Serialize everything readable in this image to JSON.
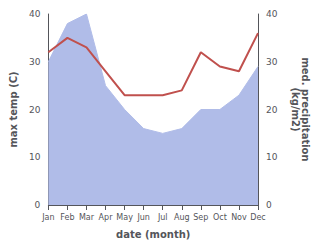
{
  "chart_data": {
    "type": "line",
    "categories": [
      "Jan",
      "Feb",
      "Mar",
      "Apr",
      "May",
      "Jun",
      "Jul",
      "Aug",
      "Sep",
      "Oct",
      "Nov",
      "Dec"
    ],
    "series": [
      {
        "type": "area",
        "color": "#b0bce8",
        "values": [
          30,
          38,
          40,
          25,
          20,
          16,
          15,
          16,
          20,
          20,
          23,
          29
        ]
      },
      {
        "type": "line",
        "color": "#c0504d",
        "axis": "y2",
        "values": [
          32,
          35,
          33,
          28,
          23,
          23,
          23,
          24,
          32,
          29,
          28,
          36
        ]
      }
    ],
    "xlabel": "date (month)",
    "ylabel": "max temp (C)",
    "y2label": "med. precipitation\n(kg/m2)",
    "ylim": [
      0,
      40
    ],
    "yticks": [
      0,
      10,
      20,
      30,
      40
    ],
    "y2lim": [
      0,
      40
    ],
    "y2ticks": [
      0,
      10,
      20,
      30,
      40
    ],
    "grid": false
  }
}
